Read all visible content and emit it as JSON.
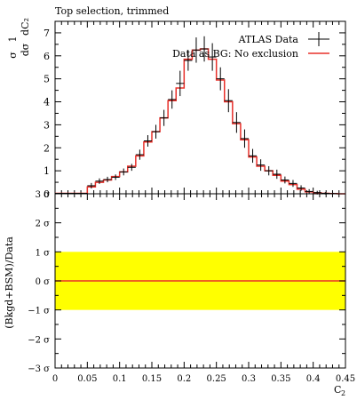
{
  "chart_data": [
    {
      "type": "line",
      "panel": "main",
      "title": "Top selection, trimmed",
      "xlabel": "",
      "ylabel": "1/σ dσ/dC₂",
      "ylabel_parts": {
        "prefix": "1",
        "den": "σ",
        "num": "dσ",
        "den2": "dC₂"
      },
      "xlim": [
        0,
        0.45
      ],
      "ylim": [
        0,
        7.5
      ],
      "yticks": [
        0,
        1,
        2,
        3,
        4,
        5,
        6,
        7
      ],
      "ytick_labels": [
        "0",
        "1",
        "2",
        "3",
        "4",
        "5",
        "6",
        "7"
      ],
      "legend": {
        "placement": "top-right"
      },
      "bin_edges": [
        0,
        0.05,
        0.0625,
        0.075,
        0.0875,
        0.1,
        0.1125,
        0.125,
        0.1375,
        0.15,
        0.1625,
        0.175,
        0.1875,
        0.2,
        0.2125,
        0.225,
        0.2375,
        0.25,
        0.2625,
        0.275,
        0.2875,
        0.3,
        0.3125,
        0.325,
        0.3375,
        0.35,
        0.3625,
        0.375,
        0.3875,
        0.4,
        0.4125,
        0.425,
        0.4375,
        0.45
      ],
      "series": [
        {
          "name": "ATLAS Data",
          "kind": "points",
          "color": "#000000",
          "x": [
            0.025,
            0.05625,
            0.06875,
            0.08125,
            0.09375,
            0.10625,
            0.11875,
            0.13125,
            0.14375,
            0.15625,
            0.16875,
            0.18125,
            0.19375,
            0.20625,
            0.21875,
            0.23125,
            0.24375,
            0.25625,
            0.26875,
            0.28125,
            0.29375,
            0.30625,
            0.31875,
            0.33125,
            0.34375,
            0.35625,
            0.36875,
            0.38125,
            0.39375,
            0.40625,
            0.41875,
            0.43125,
            0.44375
          ],
          "y": [
            0.02,
            0.35,
            0.55,
            0.62,
            0.72,
            0.95,
            1.15,
            1.7,
            2.3,
            2.7,
            3.3,
            4.1,
            4.8,
            5.8,
            6.25,
            6.3,
            5.95,
            5.0,
            4.05,
            3.1,
            2.4,
            1.65,
            1.25,
            1.0,
            0.85,
            0.6,
            0.45,
            0.25,
            0.1,
            0.05,
            0.02,
            0.01,
            0.0
          ],
          "yerr": [
            0.02,
            0.12,
            0.12,
            0.12,
            0.12,
            0.15,
            0.15,
            0.22,
            0.25,
            0.3,
            0.35,
            0.4,
            0.55,
            0.45,
            0.55,
            0.55,
            0.6,
            0.5,
            0.5,
            0.45,
            0.4,
            0.3,
            0.25,
            0.2,
            0.2,
            0.15,
            0.15,
            0.12,
            0.1,
            0.08,
            0.05,
            0.03,
            0.02
          ]
        },
        {
          "name": "Data as BG: No exclusion",
          "kind": "step",
          "color": "#e8302a",
          "values": [
            0.02,
            0.3,
            0.5,
            0.6,
            0.75,
            0.95,
            1.2,
            1.65,
            2.25,
            2.7,
            3.3,
            4.05,
            4.6,
            5.85,
            6.25,
            6.3,
            5.85,
            4.95,
            4.0,
            3.05,
            2.35,
            1.6,
            1.2,
            1.0,
            0.8,
            0.55,
            0.4,
            0.2,
            0.08,
            0.04,
            0.02,
            0.01,
            0.0
          ]
        }
      ]
    },
    {
      "type": "line",
      "panel": "ratio",
      "xlabel": "C₂",
      "xlabel_parts": {
        "base": "C",
        "sub": "2"
      },
      "ylabel": "(Bkgd+BSM)/Data",
      "xlim": [
        0,
        0.45
      ],
      "ylim": [
        -3,
        3
      ],
      "xticks": [
        0,
        0.05,
        0.1,
        0.15,
        0.2,
        0.25,
        0.3,
        0.35,
        0.4,
        0.45
      ],
      "xtick_labels": [
        "0",
        "0.05",
        "0.1",
        "0.15",
        "0.2",
        "0.25",
        "0.3",
        "0.35",
        "0.4",
        "0.45"
      ],
      "yticks": [
        -3,
        -2,
        -1,
        0,
        1,
        2,
        3
      ],
      "ytick_labels": [
        "−3 σ",
        "−2 σ",
        "−1 σ",
        "0 σ",
        "1 σ",
        "2 σ",
        "3 σ"
      ],
      "band": {
        "from": -1,
        "to": 1,
        "color": "#ffff00"
      },
      "series": [
        {
          "name": "",
          "kind": "line",
          "color": "#e8302a",
          "y": 0
        }
      ]
    }
  ]
}
